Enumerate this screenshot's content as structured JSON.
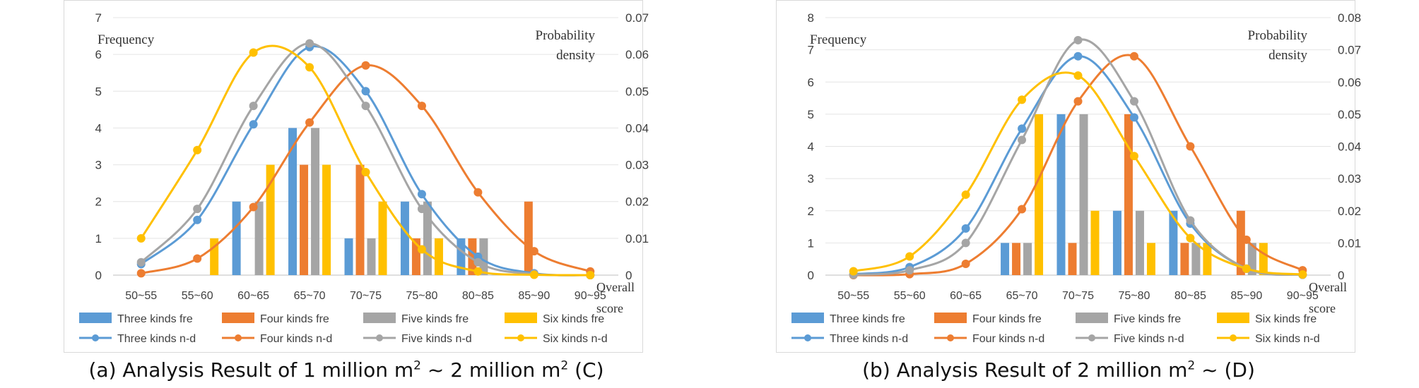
{
  "chart_data": [
    {
      "type": "bar",
      "caption_pre": "(a) Analysis Result of 1 million m",
      "caption_mid": " ~ 2 million m",
      "caption_post": " (C)",
      "caption_sup": "2",
      "left_axis_label": "Frequency",
      "right_axis_label_1": "Probability",
      "right_axis_label_2": "density",
      "x_axis_label_1": "Overall",
      "x_axis_label_2": "score",
      "ylim_left": [
        0,
        7
      ],
      "ylim_right": [
        0,
        0.07
      ],
      "left_ticks": [
        "0",
        "1",
        "2",
        "3",
        "4",
        "5",
        "6",
        "7"
      ],
      "right_ticks": [
        "0",
        "0.01",
        "0.02",
        "0.03",
        "0.04",
        "0.05",
        "0.06",
        "0.07"
      ],
      "categories": [
        "50~55",
        "55~60",
        "60~65",
        "65~70",
        "70~75",
        "75~80",
        "80~85",
        "85~90",
        "90~95"
      ],
      "bar_series": [
        {
          "name": "Three kinds fre",
          "color": "#5B9BD5",
          "values": [
            0,
            0,
            2,
            4,
            1,
            2,
            1,
            0,
            0
          ]
        },
        {
          "name": "Four kinds fre",
          "color": "#ED7D31",
          "values": [
            0,
            0,
            0,
            3,
            3,
            1,
            1,
            2,
            0
          ]
        },
        {
          "name": "Five kinds fre",
          "color": "#A5A5A5",
          "values": [
            0,
            0,
            2,
            4,
            1,
            2,
            1,
            0,
            0
          ]
        },
        {
          "name": "Six kinds fre",
          "color": "#FFC000",
          "values": [
            0,
            1,
            3,
            3,
            2,
            1,
            0,
            0,
            0
          ]
        }
      ],
      "line_series": [
        {
          "name": "Three kinds n-d",
          "color": "#5B9BD5",
          "values": [
            0.003,
            0.015,
            0.041,
            0.062,
            0.05,
            0.022,
            0.005,
            0.0005,
            0.0
          ]
        },
        {
          "name": "Four kinds n-d",
          "color": "#ED7D31",
          "values": [
            0.0005,
            0.0045,
            0.0185,
            0.0415,
            0.057,
            0.046,
            0.0225,
            0.0065,
            0.001
          ]
        },
        {
          "name": "Five kinds n-d",
          "color": "#A5A5A5",
          "values": [
            0.0035,
            0.018,
            0.046,
            0.063,
            0.046,
            0.018,
            0.0035,
            0.0003,
            0.0
          ]
        },
        {
          "name": "Six kinds n-d",
          "color": "#FFC000",
          "values": [
            0.01,
            0.034,
            0.0605,
            0.0565,
            0.028,
            0.007,
            0.001,
            0.0001,
            0.0
          ]
        }
      ]
    },
    {
      "type": "bar",
      "caption_pre": "(b) Analysis Result of 2 million m",
      "caption_mid": " ~ (D)",
      "caption_post": "",
      "caption_sup": "2",
      "left_axis_label": "Frequency",
      "right_axis_label_1": "Probability",
      "right_axis_label_2": "density",
      "x_axis_label_1": "Overall",
      "x_axis_label_2": "score",
      "ylim_left": [
        0,
        8
      ],
      "ylim_right": [
        0,
        0.08
      ],
      "left_ticks": [
        "0",
        "1",
        "2",
        "3",
        "4",
        "5",
        "6",
        "7",
        "8"
      ],
      "right_ticks": [
        "0",
        "0.01",
        "0.02",
        "0.03",
        "0.04",
        "0.05",
        "0.06",
        "0.07",
        "0.08"
      ],
      "categories": [
        "50~55",
        "55~60",
        "60~65",
        "65~70",
        "70~75",
        "75~80",
        "80~85",
        "85~90",
        "90~95"
      ],
      "bar_series": [
        {
          "name": "Three kinds fre",
          "color": "#5B9BD5",
          "values": [
            0,
            0,
            0,
            1,
            5,
            2,
            2,
            0,
            0
          ]
        },
        {
          "name": "Four kinds fre",
          "color": "#ED7D31",
          "values": [
            0,
            0,
            0,
            1,
            1,
            5,
            1,
            2,
            0
          ]
        },
        {
          "name": "Five kinds fre",
          "color": "#A5A5A5",
          "values": [
            0,
            0,
            0,
            1,
            5,
            2,
            1,
            1,
            0
          ]
        },
        {
          "name": "Six kinds fre",
          "color": "#FFC000",
          "values": [
            0,
            0,
            0,
            5,
            2,
            1,
            1,
            1,
            0
          ]
        }
      ],
      "line_series": [
        {
          "name": "Three kinds n-d",
          "color": "#5B9BD5",
          "values": [
            0.0003,
            0.0025,
            0.0145,
            0.0455,
            0.068,
            0.049,
            0.016,
            0.002,
            0.0001
          ]
        },
        {
          "name": "Four kinds n-d",
          "color": "#ED7D31",
          "values": [
            0.0,
            0.0003,
            0.0035,
            0.0205,
            0.054,
            0.068,
            0.04,
            0.011,
            0.0015
          ]
        },
        {
          "name": "Five kinds n-d",
          "color": "#A5A5A5",
          "values": [
            0.0001,
            0.0015,
            0.01,
            0.042,
            0.073,
            0.054,
            0.017,
            0.002,
            0.0001
          ]
        },
        {
          "name": "Six kinds n-d",
          "color": "#FFC000",
          "values": [
            0.0012,
            0.0058,
            0.025,
            0.0545,
            0.062,
            0.037,
            0.0115,
            0.002,
            0.0002
          ]
        }
      ]
    }
  ]
}
